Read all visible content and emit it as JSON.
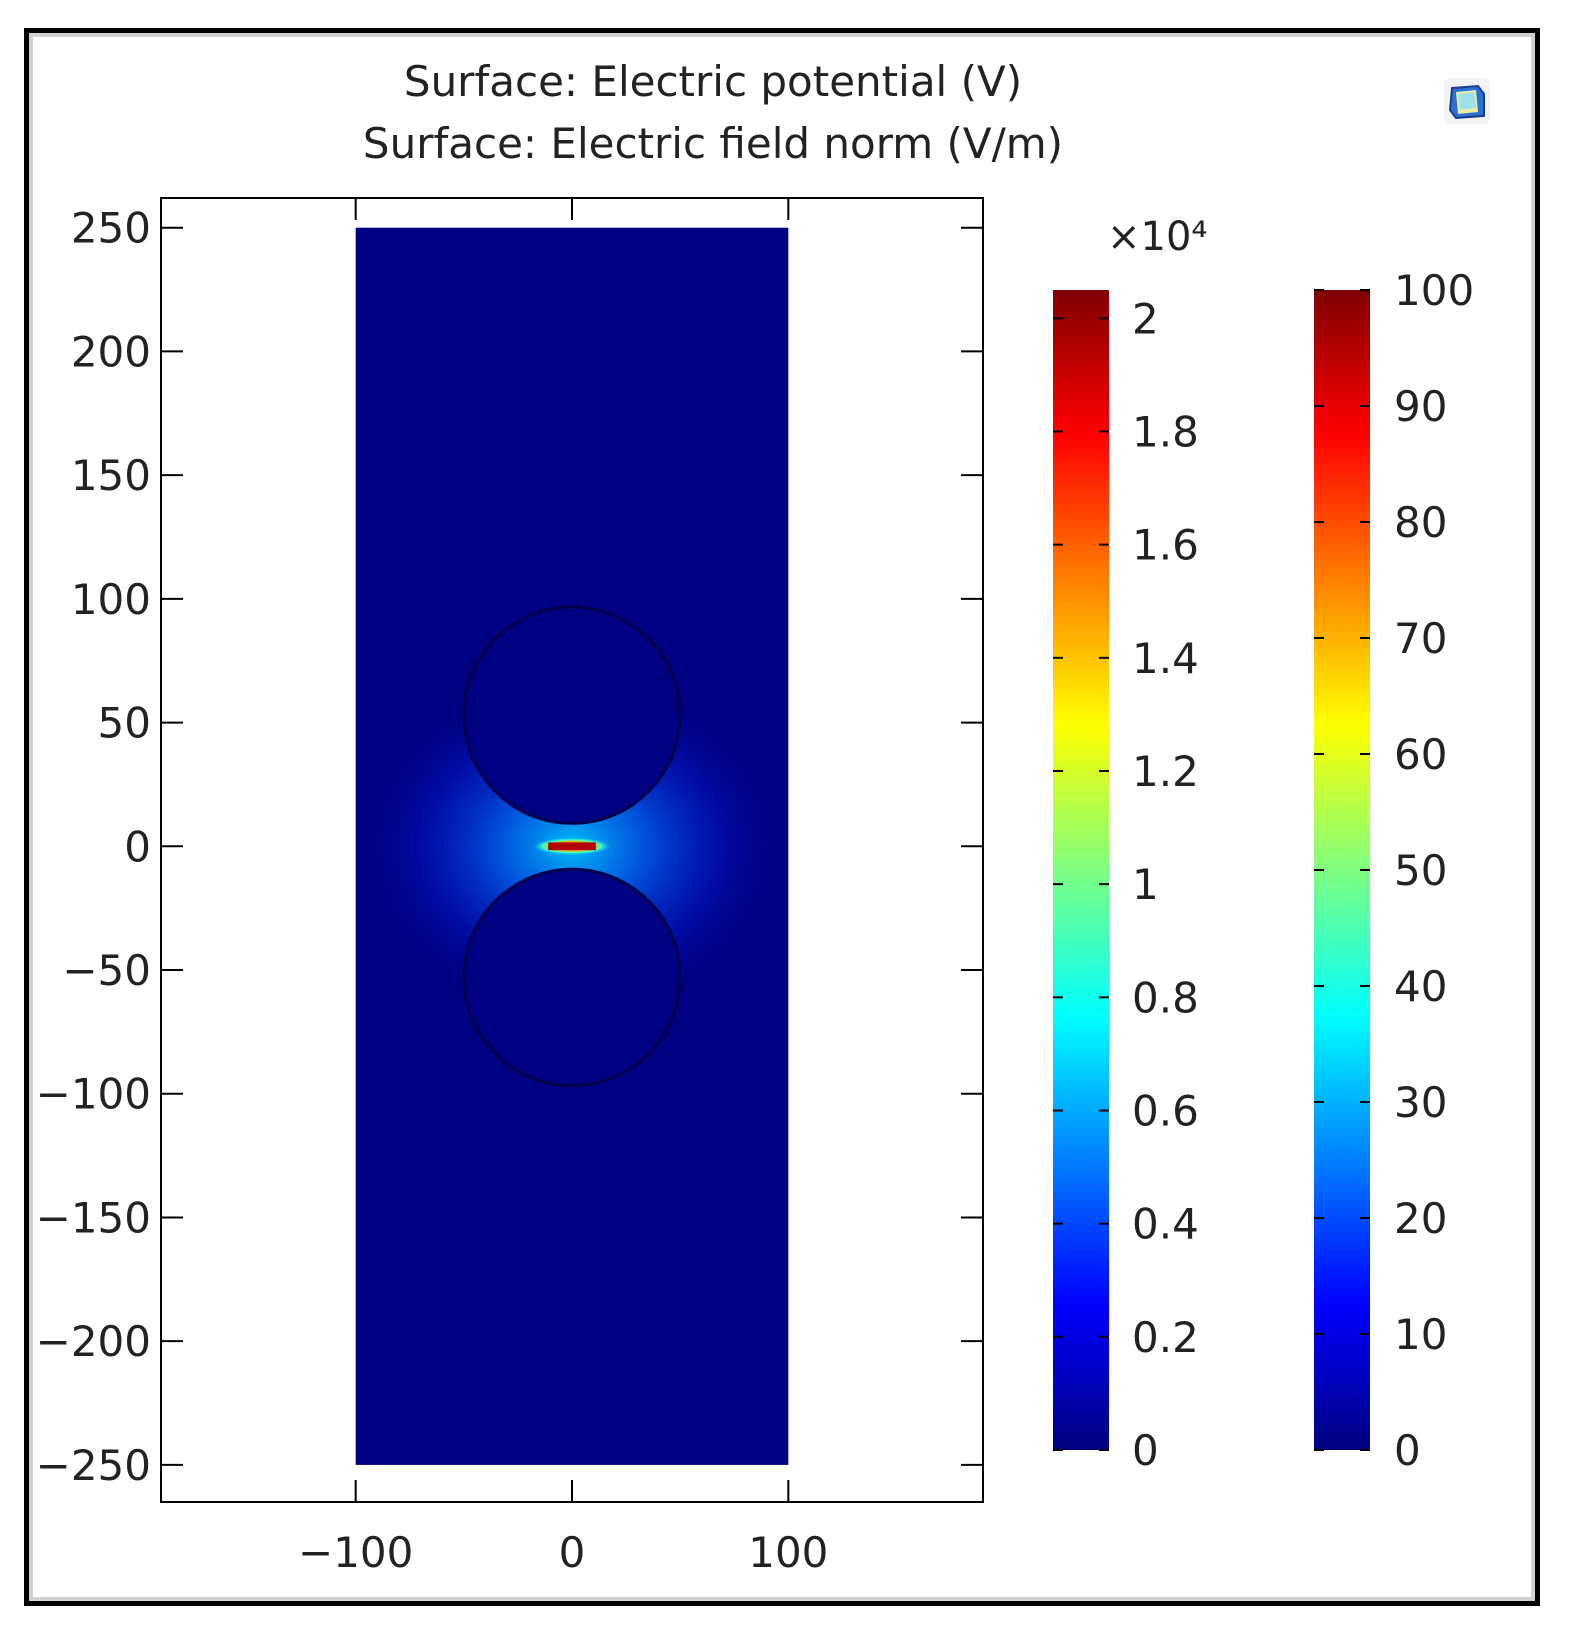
{
  "chart_data": {
    "type": "heatmap",
    "title_lines": [
      "Surface: Electric potential (V)",
      "Surface: Electric field norm (V/m)"
    ],
    "xlabel": "",
    "ylabel": "",
    "xlim": [
      -190,
      190
    ],
    "ylim": [
      -265,
      262
    ],
    "x_ticks": [
      -100,
      0,
      100
    ],
    "y_ticks": [
      250,
      200,
      150,
      100,
      50,
      0,
      -50,
      -100,
      -150,
      -200,
      -250
    ],
    "x_tick_labels": [
      "−100",
      "0",
      "100"
    ],
    "y_tick_labels": [
      "250",
      "200",
      "150",
      "100",
      "50",
      "0",
      "−50",
      "−100",
      "−150",
      "−200",
      "−250"
    ],
    "domain": {
      "x": [
        -100,
        100
      ],
      "y": [
        -250,
        250
      ]
    },
    "spheres": [
      {
        "cx": 0,
        "cy": 53,
        "r": 50
      },
      {
        "cx": 0,
        "cy": -53,
        "r": 50
      }
    ],
    "gap_hotspot": {
      "x": 0,
      "y": 0,
      "field_max": 20500
    },
    "colorbars": [
      {
        "name": "Electric field norm",
        "multiplier": "×10⁴",
        "min": 0,
        "max": 2.05,
        "ticks": [
          0,
          0.2,
          0.4,
          0.6,
          0.8,
          1,
          1.2,
          1.4,
          1.6,
          1.8,
          2
        ],
        "tick_labels": [
          "0",
          "0.2",
          "0.4",
          "0.6",
          "0.8",
          "1",
          "1.2",
          "1.4",
          "1.6",
          "1.8",
          "2"
        ]
      },
      {
        "name": "Electric potential",
        "min": 0,
        "max": 100,
        "ticks": [
          0,
          10,
          20,
          30,
          40,
          50,
          60,
          70,
          80,
          90,
          100
        ],
        "tick_labels": [
          "0",
          "10",
          "20",
          "30",
          "40",
          "50",
          "60",
          "70",
          "80",
          "90",
          "100"
        ]
      }
    ],
    "colormap": "jet",
    "colormap_stops": [
      "#00007f",
      "#0000ff",
      "#007fff",
      "#00ffff",
      "#7fff7f",
      "#ffff00",
      "#ff7f00",
      "#ff0000",
      "#7f0000"
    ],
    "background_color": "#000082",
    "grid": false
  }
}
